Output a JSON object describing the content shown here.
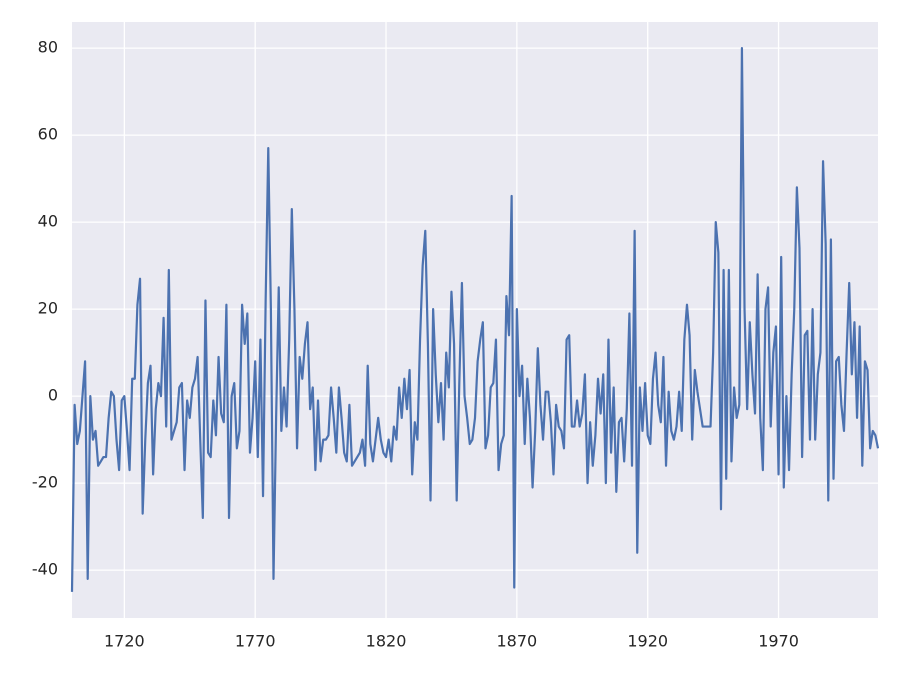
{
  "chart_data": {
    "type": "line",
    "x": [
      1700,
      1701,
      1702,
      1703,
      1704,
      1705,
      1706,
      1707,
      1708,
      1709,
      1710,
      1711,
      1712,
      1713,
      1714,
      1715,
      1716,
      1717,
      1718,
      1719,
      1720,
      1721,
      1722,
      1723,
      1724,
      1725,
      1726,
      1727,
      1728,
      1729,
      1730,
      1731,
      1732,
      1733,
      1734,
      1735,
      1736,
      1737,
      1738,
      1739,
      1740,
      1741,
      1742,
      1743,
      1744,
      1745,
      1746,
      1747,
      1748,
      1749,
      1750,
      1751,
      1752,
      1753,
      1754,
      1755,
      1756,
      1757,
      1758,
      1759,
      1760,
      1761,
      1762,
      1763,
      1764,
      1765,
      1766,
      1767,
      1768,
      1769,
      1770,
      1771,
      1772,
      1773,
      1774,
      1775,
      1776,
      1777,
      1778,
      1779,
      1780,
      1781,
      1782,
      1783,
      1784,
      1785,
      1786,
      1787,
      1788,
      1789,
      1790,
      1791,
      1792,
      1793,
      1794,
      1795,
      1796,
      1797,
      1798,
      1799,
      1800,
      1801,
      1802,
      1803,
      1804,
      1805,
      1806,
      1807,
      1808,
      1809,
      1810,
      1811,
      1812,
      1813,
      1814,
      1815,
      1816,
      1817,
      1818,
      1819,
      1820,
      1821,
      1822,
      1823,
      1824,
      1825,
      1826,
      1827,
      1828,
      1829,
      1830,
      1831,
      1832,
      1833,
      1834,
      1835,
      1836,
      1837,
      1838,
      1839,
      1840,
      1841,
      1842,
      1843,
      1844,
      1845,
      1846,
      1847,
      1848,
      1849,
      1850,
      1851,
      1852,
      1853,
      1854,
      1855,
      1856,
      1857,
      1858,
      1859,
      1860,
      1861,
      1862,
      1863,
      1864,
      1865,
      1866,
      1867,
      1868,
      1869,
      1870,
      1871,
      1872,
      1873,
      1874,
      1875,
      1876,
      1877,
      1878,
      1879,
      1880,
      1881,
      1882,
      1883,
      1884,
      1885,
      1886,
      1887,
      1888,
      1889,
      1890,
      1891,
      1892,
      1893,
      1894,
      1895,
      1896,
      1897,
      1898,
      1899,
      1900,
      1901,
      1902,
      1903,
      1904,
      1905,
      1906,
      1907,
      1908,
      1909,
      1910,
      1911,
      1912,
      1913,
      1914,
      1915,
      1916,
      1917,
      1918,
      1919,
      1920,
      1921,
      1922,
      1923,
      1924,
      1925,
      1926,
      1927,
      1928,
      1929,
      1930,
      1931,
      1932,
      1933,
      1934,
      1935,
      1936,
      1937,
      1938,
      1939,
      1940,
      1941,
      1942,
      1943,
      1944,
      1945,
      1946,
      1947,
      1948,
      1949,
      1950,
      1951,
      1952,
      1953,
      1954,
      1955,
      1956,
      1957,
      1958,
      1959,
      1960,
      1961,
      1962,
      1963,
      1964,
      1965,
      1966,
      1967,
      1968,
      1969,
      1970,
      1971,
      1972,
      1973,
      1974,
      1975,
      1976,
      1977,
      1978,
      1979,
      1980,
      1981,
      1982,
      1983,
      1984,
      1985,
      1986,
      1987,
      1988,
      1989,
      1990,
      1991,
      1992,
      1993,
      1994,
      1995,
      1996,
      1997,
      1998,
      1999,
      2000,
      2001,
      2002,
      2003,
      2004,
      2005,
      2006,
      2007,
      2008
    ],
    "series": [
      {
        "color": "#4c72b0",
        "values": [
          -45,
          -2,
          -11,
          -8,
          0,
          8,
          -42,
          0,
          -10,
          -8,
          -16,
          -15,
          -14,
          -14,
          -5,
          1,
          0,
          -10,
          -17,
          -1,
          0,
          -8,
          -17,
          4,
          4,
          21,
          27,
          -27,
          -10,
          3,
          7,
          -18,
          -3,
          3,
          0,
          18,
          -7,
          29,
          -10,
          -8,
          -6,
          2,
          3,
          -17,
          -1,
          -5,
          2,
          4,
          9,
          -10,
          -28,
          22,
          -13,
          -14,
          -1,
          -9,
          9,
          -4,
          -6,
          21,
          -28,
          0,
          3,
          -12,
          -8,
          21,
          12,
          19,
          -13,
          -5,
          8,
          -14,
          13,
          -23,
          22,
          57,
          20,
          -42,
          -5,
          25,
          -8,
          2,
          -7,
          13,
          43,
          20,
          -12,
          9,
          4,
          12,
          17,
          -3,
          2,
          -17,
          -1,
          -15,
          -10,
          -10,
          -9,
          2,
          -5,
          -13,
          2,
          -5,
          -13,
          -15,
          -2,
          -16,
          -15,
          -14,
          -13,
          -10,
          -16,
          7,
          -11,
          -15,
          -10,
          -5,
          -10,
          -13,
          -14,
          -10,
          -15,
          -7,
          -10,
          2,
          -5,
          4,
          -3,
          6,
          -18,
          -6,
          -10,
          13,
          30,
          38,
          12,
          -24,
          20,
          5,
          -6,
          3,
          -10,
          10,
          2,
          24,
          12,
          -24,
          3,
          26,
          0,
          -5,
          -11,
          -10,
          -5,
          8,
          13,
          17,
          -12,
          -9,
          2,
          3,
          13,
          -17,
          -11,
          -9,
          23,
          14,
          46,
          -44,
          20,
          0,
          7,
          -11,
          4,
          -5,
          -21,
          -8,
          11,
          -2,
          -10,
          1,
          1,
          -6,
          -18,
          -2,
          -7,
          -8,
          -12,
          13,
          14,
          -7,
          -7,
          -1,
          -7,
          -4,
          5,
          -20,
          -6,
          -16,
          -9,
          4,
          -4,
          5,
          -20,
          13,
          -13,
          2,
          -22,
          -6,
          -5,
          -15,
          -3,
          19,
          -16,
          38,
          -36,
          2,
          -8,
          3,
          -9,
          -11,
          4,
          10,
          -2,
          -6,
          9,
          -16,
          1,
          -8,
          -10,
          -7,
          1,
          -8,
          13,
          21,
          14,
          -10,
          6,
          1,
          -3,
          -7,
          -7,
          -7,
          -7,
          10,
          40,
          33,
          -26,
          29,
          -19,
          29,
          -15,
          2,
          -5,
          -2,
          80,
          20,
          -3,
          17,
          5,
          -4,
          28,
          -5,
          -17,
          20,
          25,
          -7,
          10,
          16,
          -18,
          32,
          -21,
          0,
          -17,
          5,
          20,
          48,
          34,
          -14,
          14,
          15,
          -10,
          20,
          -10,
          5,
          10,
          54,
          35,
          -24,
          36,
          -19,
          8,
          9,
          -2,
          -8,
          10,
          26,
          5,
          17,
          -5,
          16,
          -16,
          8,
          6,
          -12,
          -8,
          -9,
          -12
        ]
      }
    ],
    "xlim": [
      1700,
      2008
    ],
    "ylim": [
      -51,
      86
    ],
    "xticks": [
      1720,
      1770,
      1820,
      1870,
      1920,
      1970
    ],
    "yticks": [
      -40,
      -20,
      0,
      20,
      40,
      60,
      80
    ],
    "grid": true
  }
}
